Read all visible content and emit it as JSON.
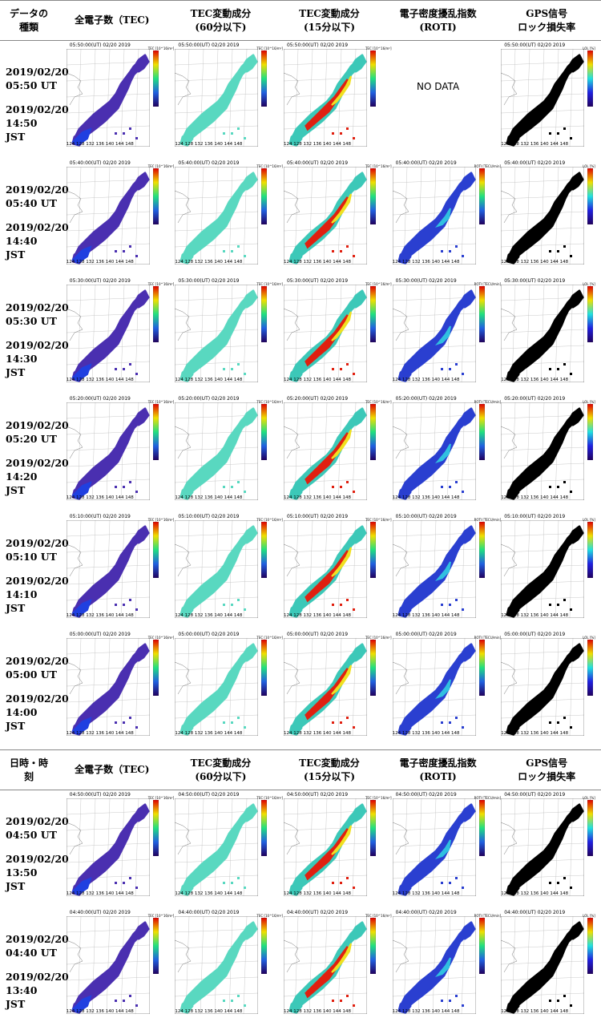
{
  "header_top": {
    "col0": "データの種類",
    "col1": "全電子数（TEC)",
    "col2a": "TEC変動成分",
    "col2b": "(60分以下)",
    "col3a": "TEC変動成分",
    "col3b": "(15分以下)",
    "col4a": "電子密度擾乱指数",
    "col4b": "(ROTI)",
    "col5a": "GPS信号",
    "col5b": "ロック損失率"
  },
  "header_mid": {
    "col0": "日時・時刻",
    "col1": "全電子数（TEC)",
    "col2a": "TEC変動成分",
    "col2b": "(60分以下)",
    "col3a": "TEC変動成分",
    "col3b": "(15分以下)",
    "col4a": "電子密度擾乱指数",
    "col4b": "(ROTI)",
    "col5a": "GPS信号",
    "col5b": "ロック損失率"
  },
  "nodata_text": "NO DATA",
  "tick_labels": "124 128 132 136 140 144 148",
  "units": {
    "tec": "TEC [10^16/m²]",
    "roti": "ROTI [TECU/min]",
    "lol": "LOL [%]"
  },
  "rows": [
    {
      "ut_date": "2019/02/20",
      "ut_time": "05:50 UT",
      "jst_date": "2019/02/20",
      "jst_time": "14:50",
      "jst_label": "JST",
      "title": "05:50:00(UT)  02/20 2019",
      "roti_nodata": true
    },
    {
      "ut_date": "2019/02/20",
      "ut_time": "05:40 UT",
      "jst_date": "2019/02/20",
      "jst_time": "14:40",
      "jst_label": "JST",
      "title": "05:40:00(UT)  02/20 2019",
      "roti_nodata": false
    },
    {
      "ut_date": "2019/02/20",
      "ut_time": "05:30 UT",
      "jst_date": "2019/02/20",
      "jst_time": "14:30",
      "jst_label": "JST",
      "title": "05:30:00(UT)  02/20 2019",
      "roti_nodata": false
    },
    {
      "ut_date": "2019/02/20",
      "ut_time": "05:20 UT",
      "jst_date": "2019/02/20",
      "jst_time": "14:20",
      "jst_label": "JST",
      "title": "05:20:00(UT)  02/20 2019",
      "roti_nodata": false
    },
    {
      "ut_date": "2019/02/20",
      "ut_time": "05:10 UT",
      "jst_date": "2019/02/20",
      "jst_time": "14:10",
      "jst_label": "JST",
      "title": "05:10:00(UT)  02/20 2019",
      "roti_nodata": false
    },
    {
      "ut_date": "2019/02/20",
      "ut_time": "05:00 UT",
      "jst_date": "2019/02/20",
      "jst_time": "14:00",
      "jst_label": "JST",
      "title": "05:00:00(UT)  02/20 2019",
      "roti_nodata": false
    },
    {
      "ut_date": "2019/02/20",
      "ut_time": "04:50 UT",
      "jst_date": "2019/02/20",
      "jst_time": "13:50",
      "jst_label": "JST",
      "title": "04:50:00(UT)  02/20 2019",
      "roti_nodata": false
    },
    {
      "ut_date": "2019/02/20",
      "ut_time": "04:40 UT",
      "jst_date": "2019/02/20",
      "jst_time": "13:40",
      "jst_label": "JST",
      "title": "04:40:00(UT)  02/20 2019",
      "roti_nodata": false
    }
  ],
  "colors": {
    "tec_fill": "#4a2fb0",
    "tec_low": "#2040e0",
    "dtec_fill": "#59d8c0",
    "dtec15_hot": "#e02010",
    "roti_fill": "#2a3fd0",
    "lol_fill": "#000000",
    "rule": "#888888"
  }
}
